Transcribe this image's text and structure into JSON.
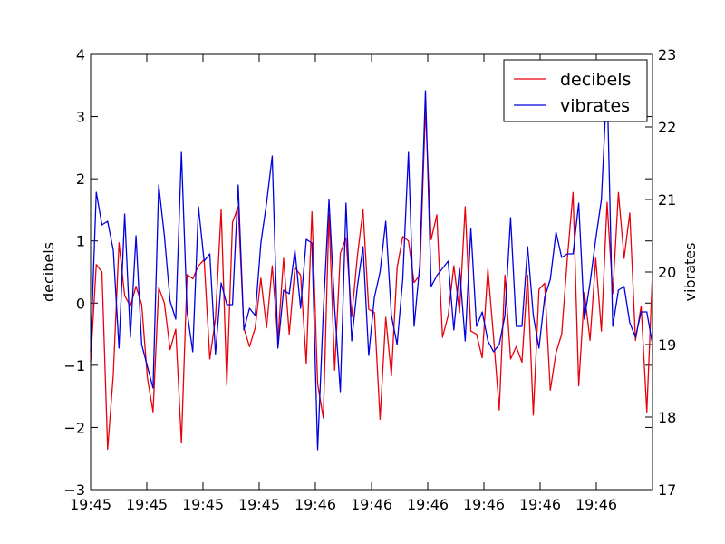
{
  "chart_data": {
    "type": "line",
    "title": "",
    "xlabel": "",
    "ylabel": "decibels",
    "ylabel_right": "vibrates",
    "x_tick_labels": [
      "19:45",
      "19:45",
      "19:45",
      "19:45",
      "19:46",
      "19:46",
      "19:46",
      "19:46",
      "19:46",
      "19:46"
    ],
    "ylim": [
      -3,
      4
    ],
    "ylim_right": [
      17,
      23
    ],
    "y_ticks": [
      -3,
      -2,
      -1,
      0,
      1,
      2,
      3,
      4
    ],
    "y_ticks_right": [
      17,
      18,
      19,
      20,
      21,
      22,
      23
    ],
    "grid": false,
    "legend": {
      "position": "top-right",
      "entries": [
        "decibels",
        "vibrates"
      ]
    },
    "series": [
      {
        "name": "decibels",
        "axis": "left",
        "color": "#e8000b",
        "values": [
          -0.95,
          0.62,
          0.5,
          -2.35,
          -1.15,
          0.97,
          0.12,
          -0.05,
          0.27,
          -0.02,
          -1.2,
          -1.75,
          0.25,
          0.0,
          -0.75,
          -0.42,
          -2.25,
          0.46,
          0.39,
          0.6,
          0.7,
          -0.9,
          -0.25,
          1.5,
          -1.32,
          1.3,
          1.55,
          -0.4,
          -0.7,
          -0.4,
          0.4,
          -0.4,
          0.6,
          -0.6,
          0.72,
          -0.5,
          0.57,
          0.45,
          -0.97,
          1.47,
          -1.3,
          -1.85,
          1.43,
          -1.08,
          0.8,
          1.05,
          -0.22,
          0.75,
          1.5,
          -0.1,
          -0.15,
          -1.87,
          -0.23,
          -1.17,
          0.57,
          1.07,
          1.0,
          0.33,
          0.45,
          3.12,
          1.02,
          1.42,
          -0.55,
          -0.2,
          0.6,
          -0.15,
          1.55,
          -0.45,
          -0.5,
          -0.88,
          0.55,
          -0.55,
          -1.72,
          0.45,
          -0.9,
          -0.7,
          -0.95,
          0.45,
          -1.8,
          0.22,
          0.32,
          -1.4,
          -0.8,
          -0.5,
          0.72,
          1.78,
          -1.33,
          0.17,
          -0.6,
          0.72,
          -0.45,
          1.62,
          0.15,
          1.78,
          0.72,
          1.45,
          -0.6,
          -0.05,
          -1.75,
          0.5
        ]
      },
      {
        "name": "vibrates",
        "axis": "right",
        "color": "#0000e0",
        "values": [
          18.9,
          21.1,
          20.65,
          20.7,
          20.3,
          18.95,
          20.8,
          19.1,
          20.5,
          19.0,
          18.7,
          18.4,
          21.2,
          20.5,
          19.6,
          19.35,
          21.65,
          19.45,
          18.9,
          20.9,
          20.15,
          20.25,
          18.87,
          19.85,
          19.55,
          19.55,
          21.2,
          19.2,
          19.5,
          19.4,
          20.4,
          20.95,
          21.6,
          18.95,
          19.75,
          19.7,
          20.3,
          19.5,
          20.45,
          20.4,
          17.55,
          19.45,
          21.0,
          19.5,
          18.35,
          20.95,
          19.05,
          19.8,
          20.35,
          18.85,
          19.65,
          20.0,
          20.7,
          19.4,
          19.0,
          19.9,
          21.65,
          19.25,
          20.1,
          22.5,
          19.8,
          19.95,
          20.05,
          20.15,
          19.2,
          20.05,
          19.05,
          20.6,
          19.25,
          19.45,
          19.05,
          18.9,
          19.0,
          19.4,
          20.75,
          19.25,
          19.25,
          20.35,
          19.4,
          18.95,
          19.65,
          19.9,
          20.55,
          20.2,
          20.25,
          20.25,
          20.95,
          19.35,
          19.85,
          20.45,
          21.0,
          22.65,
          19.25,
          19.75,
          19.8,
          19.3,
          19.1,
          19.45,
          19.45,
          19.0
        ]
      }
    ]
  }
}
